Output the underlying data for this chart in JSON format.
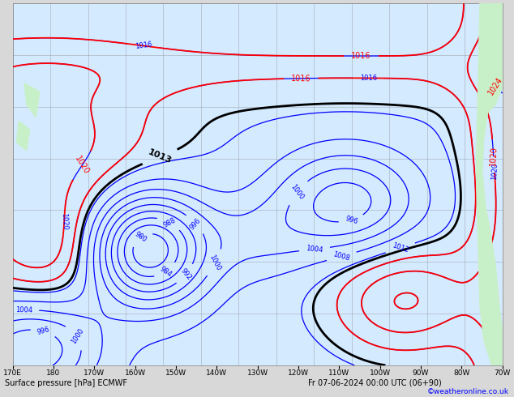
{
  "title": "Surface pressure [hPa] ECMWF   Fr 07-06-2024 00:00 UTC (06+90)",
  "credit": "©weatheronline.co.uk",
  "bg_color": "#d8d8d8",
  "map_bg_color": "#d4eaff",
  "land_color": "#c8f0c8",
  "figsize": [
    6.34,
    4.9
  ],
  "dpi": 100,
  "xlabel_ticks": [
    "170E",
    "180",
    "170W",
    "160W",
    "150W",
    "140W",
    "130W",
    "120W",
    "110W",
    "100W",
    "90W",
    "80W",
    "70W"
  ],
  "bottom_label": "Surface pressure [hPa] ECMWF",
  "bottom_right": "Fr 07-06-2024 00:00 UTC (06+90)"
}
